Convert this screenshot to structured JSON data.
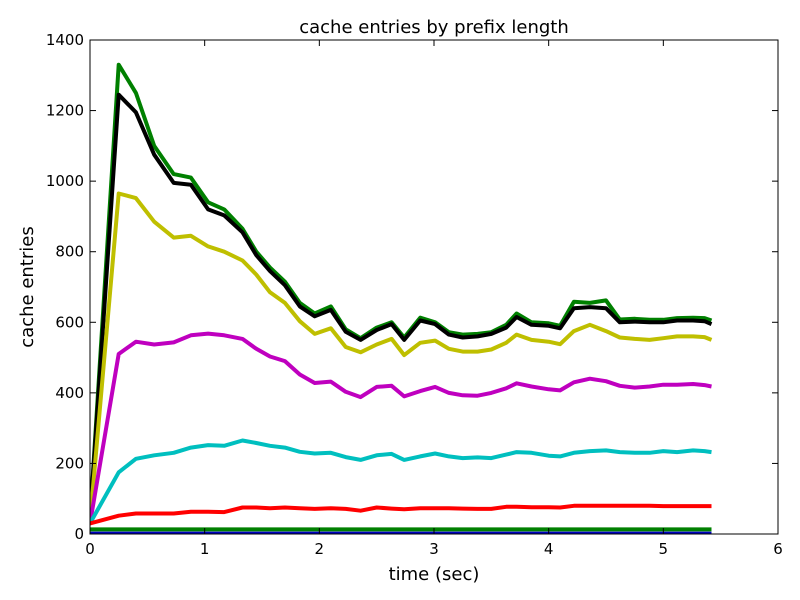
{
  "chart_data": {
    "type": "line",
    "title": "cache entries by prefix length",
    "xlabel": "time (sec)",
    "ylabel": "cache entries",
    "xlim": [
      0,
      6
    ],
    "ylim": [
      0,
      1400
    ],
    "xticks": [
      0,
      1,
      2,
      3,
      4,
      5,
      6
    ],
    "yticks": [
      0,
      200,
      400,
      600,
      800,
      1000,
      1200,
      1400
    ],
    "grid": false,
    "legend": "none",
    "x": [
      0,
      0.25,
      0.4,
      0.56,
      0.73,
      0.88,
      1.03,
      1.17,
      1.33,
      1.45,
      1.57,
      1.7,
      1.83,
      1.96,
      2.1,
      2.23,
      2.36,
      2.5,
      2.63,
      2.74,
      2.88,
      3.01,
      3.13,
      3.25,
      3.38,
      3.5,
      3.63,
      3.72,
      3.85,
      4.0,
      4.1,
      4.22,
      4.36,
      4.5,
      4.62,
      4.75,
      4.88,
      5.0,
      5.12,
      5.26,
      5.36,
      5.42
    ],
    "series": [
      {
        "color": "#008000",
        "values": [
          40,
          1330,
          1250,
          1100,
          1020,
          1010,
          940,
          920,
          865,
          800,
          755,
          715,
          655,
          625,
          645,
          580,
          555,
          585,
          600,
          557,
          613,
          600,
          572,
          565,
          567,
          572,
          593,
          625,
          600,
          597,
          590,
          658,
          655,
          662,
          608,
          610,
          607,
          607,
          612,
          613,
          612,
          605
        ]
      },
      {
        "color": "#000000",
        "values": [
          40,
          1245,
          1195,
          1075,
          995,
          990,
          920,
          903,
          855,
          790,
          745,
          705,
          645,
          617,
          635,
          573,
          550,
          578,
          595,
          550,
          605,
          595,
          565,
          557,
          560,
          567,
          585,
          615,
          593,
          590,
          583,
          640,
          643,
          640,
          600,
          602,
          600,
          600,
          605,
          605,
          603,
          595
        ]
      },
      {
        "color": "#bfbf00",
        "values": [
          35,
          965,
          952,
          885,
          840,
          845,
          815,
          800,
          775,
          735,
          685,
          655,
          603,
          567,
          583,
          530,
          515,
          537,
          553,
          507,
          542,
          548,
          525,
          517,
          517,
          523,
          542,
          565,
          550,
          545,
          538,
          575,
          593,
          575,
          557,
          553,
          550,
          555,
          560,
          560,
          558,
          550
        ]
      },
      {
        "color": "#bf00bf",
        "values": [
          30,
          510,
          545,
          537,
          543,
          563,
          568,
          563,
          553,
          525,
          503,
          490,
          452,
          428,
          432,
          403,
          388,
          417,
          420,
          390,
          405,
          417,
          400,
          393,
          392,
          400,
          413,
          427,
          418,
          410,
          407,
          430,
          440,
          433,
          420,
          415,
          418,
          423,
          423,
          425,
          422,
          418
        ]
      },
      {
        "color": "#00bfbf",
        "values": [
          30,
          175,
          213,
          223,
          230,
          245,
          252,
          250,
          265,
          258,
          250,
          245,
          233,
          228,
          230,
          218,
          210,
          223,
          227,
          210,
          220,
          228,
          220,
          215,
          217,
          215,
          225,
          232,
          230,
          222,
          220,
          230,
          235,
          237,
          232,
          230,
          230,
          235,
          232,
          237,
          235,
          232
        ]
      },
      {
        "color": "#ff0000",
        "values": [
          30,
          52,
          58,
          58,
          58,
          63,
          63,
          62,
          75,
          75,
          73,
          75,
          73,
          71,
          73,
          71,
          66,
          75,
          72,
          70,
          73,
          73,
          73,
          72,
          71,
          71,
          77,
          77,
          76,
          76,
          75,
          80,
          80,
          80,
          80,
          80,
          80,
          79,
          79,
          79,
          79,
          79
        ]
      },
      {
        "color": "#008000",
        "values": [
          13,
          13,
          13,
          13,
          13,
          13,
          13,
          13,
          13,
          13,
          13,
          13,
          13,
          13,
          13,
          13,
          13,
          13,
          13,
          13,
          13,
          13,
          13,
          13,
          13,
          13,
          13,
          13,
          13,
          13,
          13,
          13,
          13,
          13,
          13,
          13,
          13,
          13,
          13,
          13,
          13,
          13
        ]
      },
      {
        "color": "#0000bf",
        "values": [
          1,
          1,
          1,
          1,
          1,
          1,
          1,
          1,
          1,
          1,
          1,
          1,
          1,
          1,
          1,
          1,
          1,
          1,
          1,
          1,
          1,
          1,
          1,
          1,
          1,
          1,
          1,
          1,
          1,
          1,
          1,
          1,
          1,
          1,
          1,
          1,
          1,
          1,
          1,
          1,
          1,
          1
        ]
      }
    ]
  }
}
